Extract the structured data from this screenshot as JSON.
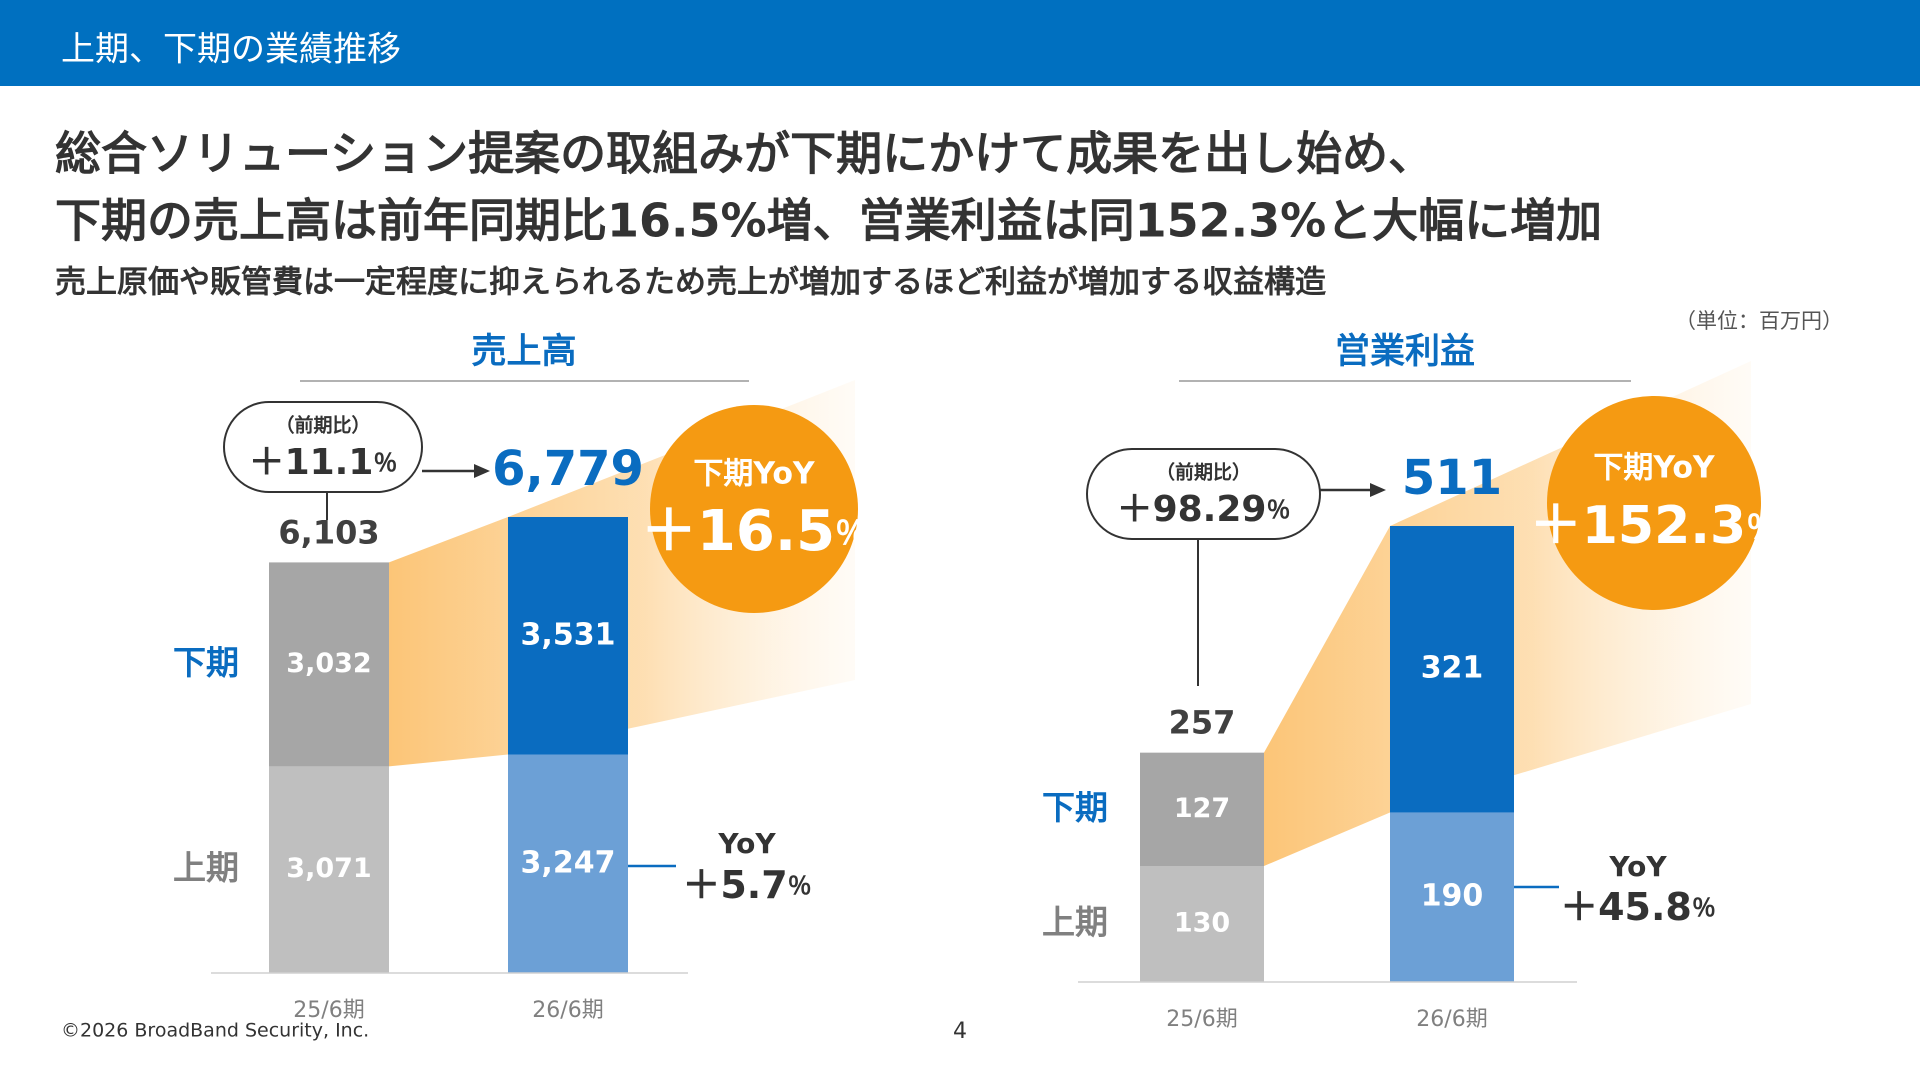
{
  "header": {
    "title": "上期、下期の業績推移"
  },
  "headline": {
    "lines": [
      "総合ソリューション提案の取組みが下期にかけて成果を出し始め、",
      "下期の売上高は前年同期比16.5%増、営業利益は同152.3%と大幅に増加"
    ],
    "subline": "売上原価や販管費は一定程度に抑えられるため売上が増加するほど利益が増加する収益構造"
  },
  "unit_note": "（単位：百万円）",
  "chart_data": [
    {
      "type": "stacked_bar",
      "title": "売上高",
      "categories": [
        "25/6期",
        "26/6期"
      ],
      "series": [
        {
          "name": "上期",
          "label_color": "#808080",
          "colors": [
            "#bfbfbf",
            "#6ca0d6"
          ],
          "values": [
            3071,
            3247
          ],
          "value_labels": [
            "3,071",
            "3,247"
          ]
        },
        {
          "name": "下期",
          "label_color": "#0a6cc0",
          "colors": [
            "#a6a6a6",
            "#0a6cc0"
          ],
          "values": [
            3032,
            3531
          ],
          "value_labels": [
            "3,032",
            "3,531"
          ]
        }
      ],
      "totals": {
        "values": [
          6103,
          6779
        ],
        "value_labels": [
          "6,103",
          "6,779"
        ]
      },
      "change_note": {
        "label": "（前期比）",
        "value": "＋11.1％"
      },
      "highlight": {
        "label": "下期YoY",
        "value": "＋16.5％",
        "color": "#f59a12"
      },
      "yoy_note": {
        "label": "YoY",
        "value": "＋5.7％"
      }
    },
    {
      "type": "stacked_bar",
      "title": "営業利益",
      "categories": [
        "25/6期",
        "26/6期"
      ],
      "series": [
        {
          "name": "上期",
          "label_color": "#808080",
          "colors": [
            "#bfbfbf",
            "#6ca0d6"
          ],
          "values": [
            130,
            190
          ]
        },
        {
          "name": "下期",
          "label_color": "#0a6cc0",
          "colors": [
            "#a6a6a6",
            "#0a6cc0"
          ],
          "values": [
            127,
            321
          ]
        }
      ],
      "totals": {
        "values": [
          257,
          511
        ]
      },
      "change_note": {
        "label": "（前期比）",
        "value": "＋98.29％"
      },
      "highlight": {
        "label": "下期YoY",
        "value": "＋152.3％",
        "color": "#f59a12"
      },
      "yoy_note": {
        "label": "YoY",
        "value": "＋45.8％"
      }
    }
  ],
  "footer": {
    "copyright": "©2026 BroadBand Security, Inc.",
    "page": "4"
  }
}
